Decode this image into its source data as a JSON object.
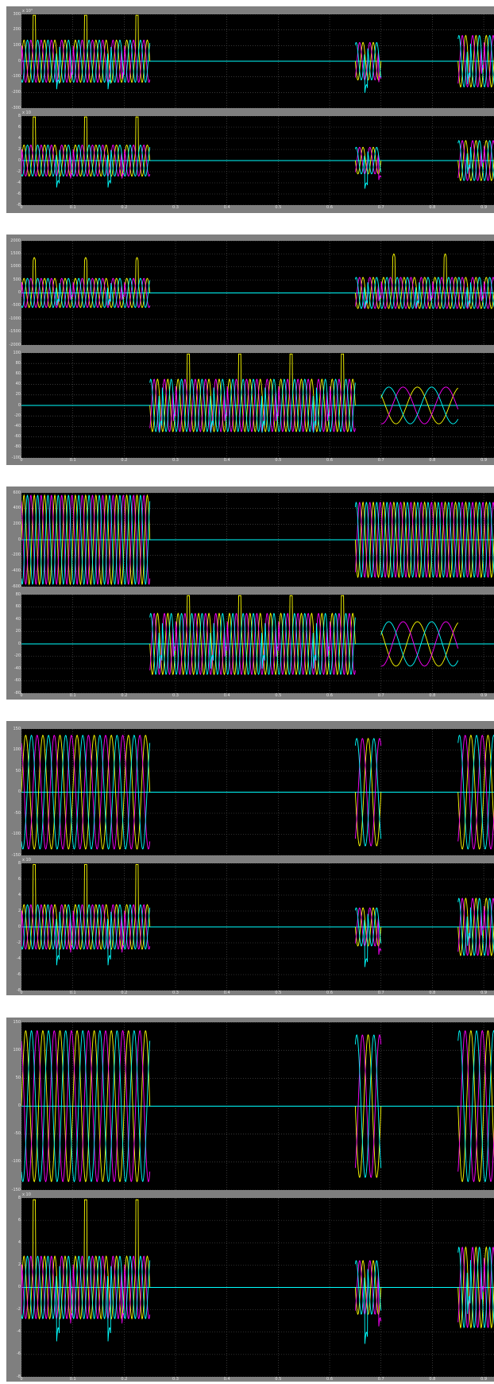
{
  "colors": {
    "frame": "#7f7f7f",
    "plot_bg": "#000000",
    "grid": "#5a5a5a",
    "tick_text": "#e6e6e6",
    "phase_a": "#ffff00",
    "phase_b": "#ff00ff",
    "phase_c": "#00ffff",
    "trace_d": "#ff0000"
  },
  "chart_data": [
    {
      "scope": 1,
      "type": "line",
      "x_ticks": [
        "0",
        "0.1",
        "0.2",
        "0.3",
        "0.4",
        "0.5",
        "0.6",
        "0.7",
        "0.8",
        "0.9"
      ],
      "xlim": [
        0,
        1
      ],
      "grid": true,
      "axes": [
        {
          "name": "upper",
          "y_ticks": [
            "300",
            "200",
            "100",
            "0",
            "-100",
            "-200",
            "-300"
          ],
          "ylim": [
            -300,
            300
          ],
          "exponent": "x 10³",
          "segments": [
            {
              "x": [
                0.0,
                0.25
              ],
              "amplitude": 0.45,
              "peak": 0.85,
              "cycles": 50
            },
            {
              "x": [
                0.65,
                0.7
              ],
              "amplitude": 0.4,
              "peak": 0.9,
              "cycles": 50
            },
            {
              "x": [
                0.85,
                1.0
              ],
              "amplitude": 0.55,
              "peak": 0.8,
              "cycles": 50
            }
          ]
        },
        {
          "name": "lower",
          "y_ticks": [
            "8",
            "6",
            "4",
            "2",
            "0",
            "-2",
            "-4",
            "-6",
            "-8"
          ],
          "ylim": [
            -8,
            8
          ],
          "exponent": "x 10",
          "segments": [
            {
              "x": [
                0.0,
                0.25
              ],
              "amplitude": 0.35,
              "peak": 0.8,
              "cycles": 50
            },
            {
              "x": [
                0.65,
                0.7
              ],
              "amplitude": 0.3,
              "peak": 0.8,
              "cycles": 50
            },
            {
              "x": [
                0.85,
                1.0
              ],
              "amplitude": 0.45,
              "peak": 0.55,
              "cycles": 50
            }
          ]
        }
      ]
    },
    {
      "scope": 2,
      "type": "line",
      "x_ticks": [
        "0",
        "0.1",
        "0.2",
        "0.3",
        "0.4",
        "0.5",
        "0.6",
        "0.7",
        "0.8",
        "0.9"
      ],
      "xlim": [
        0,
        1
      ],
      "grid": true,
      "axes": [
        {
          "name": "upper",
          "y_ticks": [
            "2000",
            "1500",
            "1000",
            "500",
            "0",
            "-500",
            "-1000",
            "-1500",
            "-2000"
          ],
          "ylim": [
            -2000,
            2000
          ],
          "exponent": "",
          "segments": [
            {
              "x": [
                0.0,
                0.25
              ],
              "amplitude": 0.28,
              "peak": 0.4,
              "cycles": 50
            },
            {
              "x": [
                0.65,
                1.0
              ],
              "amplitude": 0.3,
              "peak": 0.45,
              "cycles": 50
            }
          ]
        },
        {
          "name": "lower",
          "y_ticks": [
            "100",
            "80",
            "60",
            "40",
            "20",
            "0",
            "-20",
            "-40",
            "-60",
            "-80",
            "-100"
          ],
          "ylim": [
            -100,
            100
          ],
          "exponent": "",
          "segments": [
            {
              "x": [
                0.25,
                0.65
              ],
              "amplitude": 0.5,
              "peak": 0.8,
              "cycles": 50
            },
            {
              "x": [
                0.7,
                0.85
              ],
              "amplitude": 0.35,
              "peak": 0.0,
              "cycles": 12
            }
          ]
        }
      ]
    },
    {
      "scope": 3,
      "type": "line",
      "x_ticks": [
        "0",
        "0.1",
        "0.2",
        "0.3",
        "0.4",
        "0.5",
        "0.6",
        "0.7",
        "0.8",
        "0.9"
      ],
      "xlim": [
        0,
        1
      ],
      "grid": true,
      "axes": [
        {
          "name": "upper",
          "y_ticks": [
            "600",
            "400",
            "200",
            "0",
            "-200",
            "-400",
            "-600"
          ],
          "ylim": [
            -600,
            600
          ],
          "exponent": "",
          "segments": [
            {
              "x": [
                0.0,
                0.25
              ],
              "amplitude": 0.95,
              "peak": 0.0,
              "cycles": 50
            },
            {
              "x": [
                0.65,
                1.0
              ],
              "amplitude": 0.8,
              "peak": 0.0,
              "cycles": 50
            }
          ]
        },
        {
          "name": "lower",
          "y_ticks": [
            "80",
            "60",
            "40",
            "20",
            "0",
            "-20",
            "-40",
            "-60",
            "-80"
          ],
          "ylim": [
            -80,
            80
          ],
          "exponent": "",
          "segments": [
            {
              "x": [
                0.25,
                0.65
              ],
              "amplitude": 0.62,
              "peak": 0.85,
              "cycles": 50
            },
            {
              "x": [
                0.7,
                0.85
              ],
              "amplitude": 0.45,
              "peak": 0.0,
              "cycles": 12
            }
          ]
        }
      ]
    },
    {
      "scope": 4,
      "type": "line",
      "x_ticks": [
        "0",
        "0.1",
        "0.2",
        "0.3",
        "0.4",
        "0.5",
        "0.6",
        "0.7",
        "0.8",
        "0.9"
      ],
      "xlim": [
        0,
        1
      ],
      "grid": true,
      "axes": [
        {
          "name": "upper",
          "y_ticks": [
            "150",
            "100",
            "50",
            "0",
            "-50",
            "-100",
            "-150"
          ],
          "ylim": [
            -150,
            150
          ],
          "exponent": "",
          "segments": [
            {
              "x": [
                0.0,
                0.25
              ],
              "amplitude": 0.9,
              "peak": 0.0,
              "cycles": 30
            },
            {
              "x": [
                0.65,
                0.7
              ],
              "amplitude": 0.85,
              "peak": 0.0,
              "cycles": 30
            },
            {
              "x": [
                0.85,
                1.0
              ],
              "amplitude": 0.9,
              "peak": 0.0,
              "cycles": 30
            }
          ]
        },
        {
          "name": "lower",
          "y_ticks": [
            "8",
            "6",
            "4",
            "2",
            "0",
            "-2",
            "-4",
            "-6",
            "-8"
          ],
          "ylim": [
            -8,
            8
          ],
          "exponent": "x 10",
          "segments": [
            {
              "x": [
                0.0,
                0.25
              ],
              "amplitude": 0.35,
              "peak": 0.8,
              "cycles": 50
            },
            {
              "x": [
                0.65,
                0.7
              ],
              "amplitude": 0.3,
              "peak": 0.8,
              "cycles": 50
            },
            {
              "x": [
                0.85,
                1.0
              ],
              "amplitude": 0.45,
              "peak": 0.55,
              "cycles": 50
            }
          ]
        }
      ]
    },
    {
      "scope": 5,
      "type": "line",
      "x_ticks": [
        "0",
        "0.1",
        "0.2",
        "0.3",
        "0.4",
        "0.5",
        "0.6",
        "0.7",
        "0.8",
        "0.9"
      ],
      "xlim": [
        0,
        1
      ],
      "grid": true,
      "axes": [
        {
          "name": "upper",
          "y_ticks": [
            "150",
            "100",
            "50",
            "0",
            "-50",
            "-100",
            "-150"
          ],
          "ylim": [
            -150,
            150
          ],
          "exponent": "",
          "segments": [
            {
              "x": [
                0.0,
                0.25
              ],
              "amplitude": 0.9,
              "peak": 0.0,
              "cycles": 30
            },
            {
              "x": [
                0.65,
                0.7
              ],
              "amplitude": 0.85,
              "peak": 0.0,
              "cycles": 30
            },
            {
              "x": [
                0.85,
                1.0
              ],
              "amplitude": 0.9,
              "peak": 0.0,
              "cycles": 30
            }
          ]
        },
        {
          "name": "lower",
          "y_ticks": [
            "8",
            "6",
            "4",
            "2",
            "0",
            "-2",
            "-4",
            "-6",
            "-8"
          ],
          "ylim": [
            -8,
            8
          ],
          "exponent": "x 10",
          "segments": [
            {
              "x": [
                0.0,
                0.25
              ],
              "amplitude": 0.35,
              "peak": 0.8,
              "cycles": 50
            },
            {
              "x": [
                0.65,
                0.7
              ],
              "amplitude": 0.3,
              "peak": 0.8,
              "cycles": 50
            },
            {
              "x": [
                0.85,
                1.0
              ],
              "amplitude": 0.45,
              "peak": 0.55,
              "cycles": 50
            }
          ]
        }
      ]
    }
  ]
}
